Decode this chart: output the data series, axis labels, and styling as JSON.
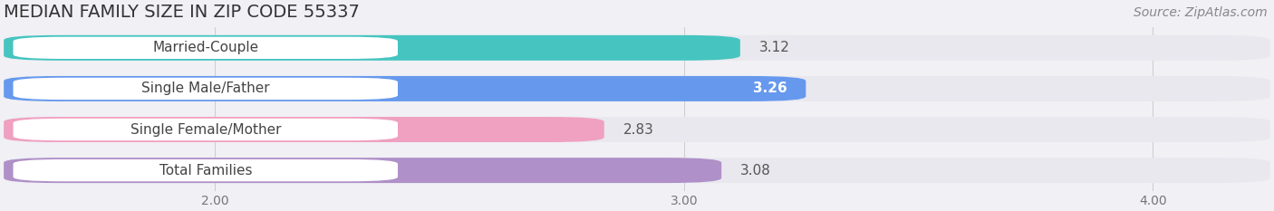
{
  "title": "MEDIAN FAMILY SIZE IN ZIP CODE 55337",
  "source": "Source: ZipAtlas.com",
  "categories": [
    "Married-Couple",
    "Single Male/Father",
    "Single Female/Mother",
    "Total Families"
  ],
  "values": [
    3.12,
    3.26,
    2.83,
    3.08
  ],
  "bar_colors": [
    "#45c4c0",
    "#6699ee",
    "#f0a0c0",
    "#b090c8"
  ],
  "value_label_colors": [
    "#555555",
    "#ffffff",
    "#555555",
    "#555555"
  ],
  "xlim_left": 1.55,
  "xlim_right": 4.25,
  "xticks": [
    2.0,
    3.0,
    4.0
  ],
  "bar_height": 0.62,
  "track_color": "#e8e8ee",
  "background_color": "#f0f0f5",
  "label_box_color": "#ffffff",
  "title_fontsize": 14,
  "source_fontsize": 10,
  "label_fontsize": 11,
  "value_fontsize": 11
}
